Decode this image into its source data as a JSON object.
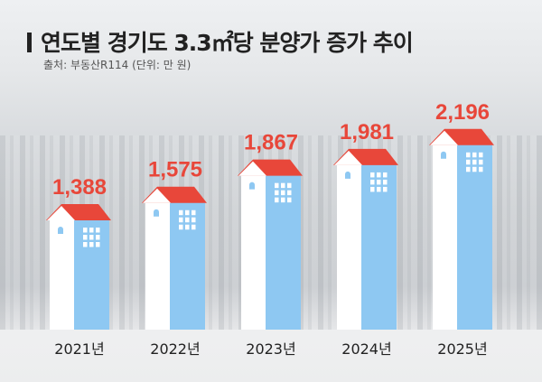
{
  "title": "연도별 경기도 3.3㎡당 분양가 증가 추이",
  "source": "출처: 부동산R114 (단위: 만 원)",
  "chart_data": {
    "type": "bar",
    "title": "연도별 경기도 3.3㎡당 분양가 증가 추이",
    "unit": "만 원",
    "categories": [
      "2021년",
      "2022년",
      "2023년",
      "2024년",
      "2025년"
    ],
    "values": [
      1388,
      1575,
      1867,
      1981,
      2196
    ],
    "value_labels": [
      "1,388",
      "1,575",
      "1,867",
      "1,981",
      "2,196"
    ],
    "colors": {
      "value_label": "#e8473a",
      "roof": "#e8473a",
      "wall_light": "#ffffff",
      "wall_dark": "#8ec8f2",
      "window": "#ffffff"
    }
  }
}
